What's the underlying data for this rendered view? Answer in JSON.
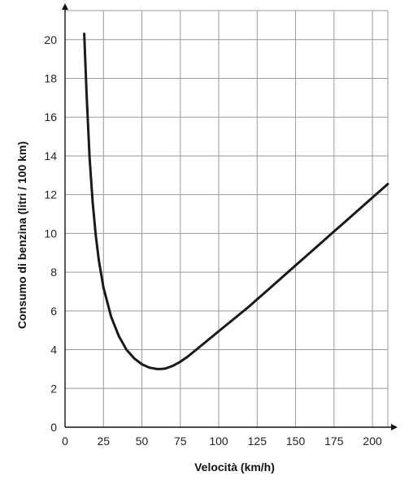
{
  "chart_data": {
    "type": "line",
    "xlabel": "Velocità (km/h)",
    "ylabel": "Consumo di benzina (litri / 100 km)",
    "xlim": [
      0,
      210
    ],
    "ylim": [
      0,
      21.5
    ],
    "x_ticks": [
      0,
      25,
      50,
      75,
      100,
      125,
      150,
      175,
      200
    ],
    "y_ticks": [
      0,
      2,
      4,
      6,
      8,
      10,
      12,
      14,
      16,
      18,
      20
    ],
    "grid": true,
    "series": [
      {
        "x": [
          12.5,
          14,
          16,
          18,
          20,
          22,
          25,
          30,
          35,
          40,
          45,
          50,
          55,
          60,
          62,
          65,
          70,
          75,
          80,
          90,
          100,
          110,
          120,
          125,
          130,
          140,
          150,
          160,
          170,
          175,
          180,
          190,
          200,
          210
        ],
        "values": [
          20.3,
          17.2,
          13.9,
          11.6,
          9.9,
          8.6,
          7.2,
          5.7,
          4.7,
          4.0,
          3.55,
          3.25,
          3.07,
          3.0,
          3.0,
          3.02,
          3.16,
          3.38,
          3.65,
          4.3,
          4.95,
          5.6,
          6.25,
          6.6,
          6.95,
          7.65,
          8.35,
          9.05,
          9.75,
          10.1,
          10.45,
          11.15,
          11.85,
          12.55
        ]
      }
    ]
  }
}
